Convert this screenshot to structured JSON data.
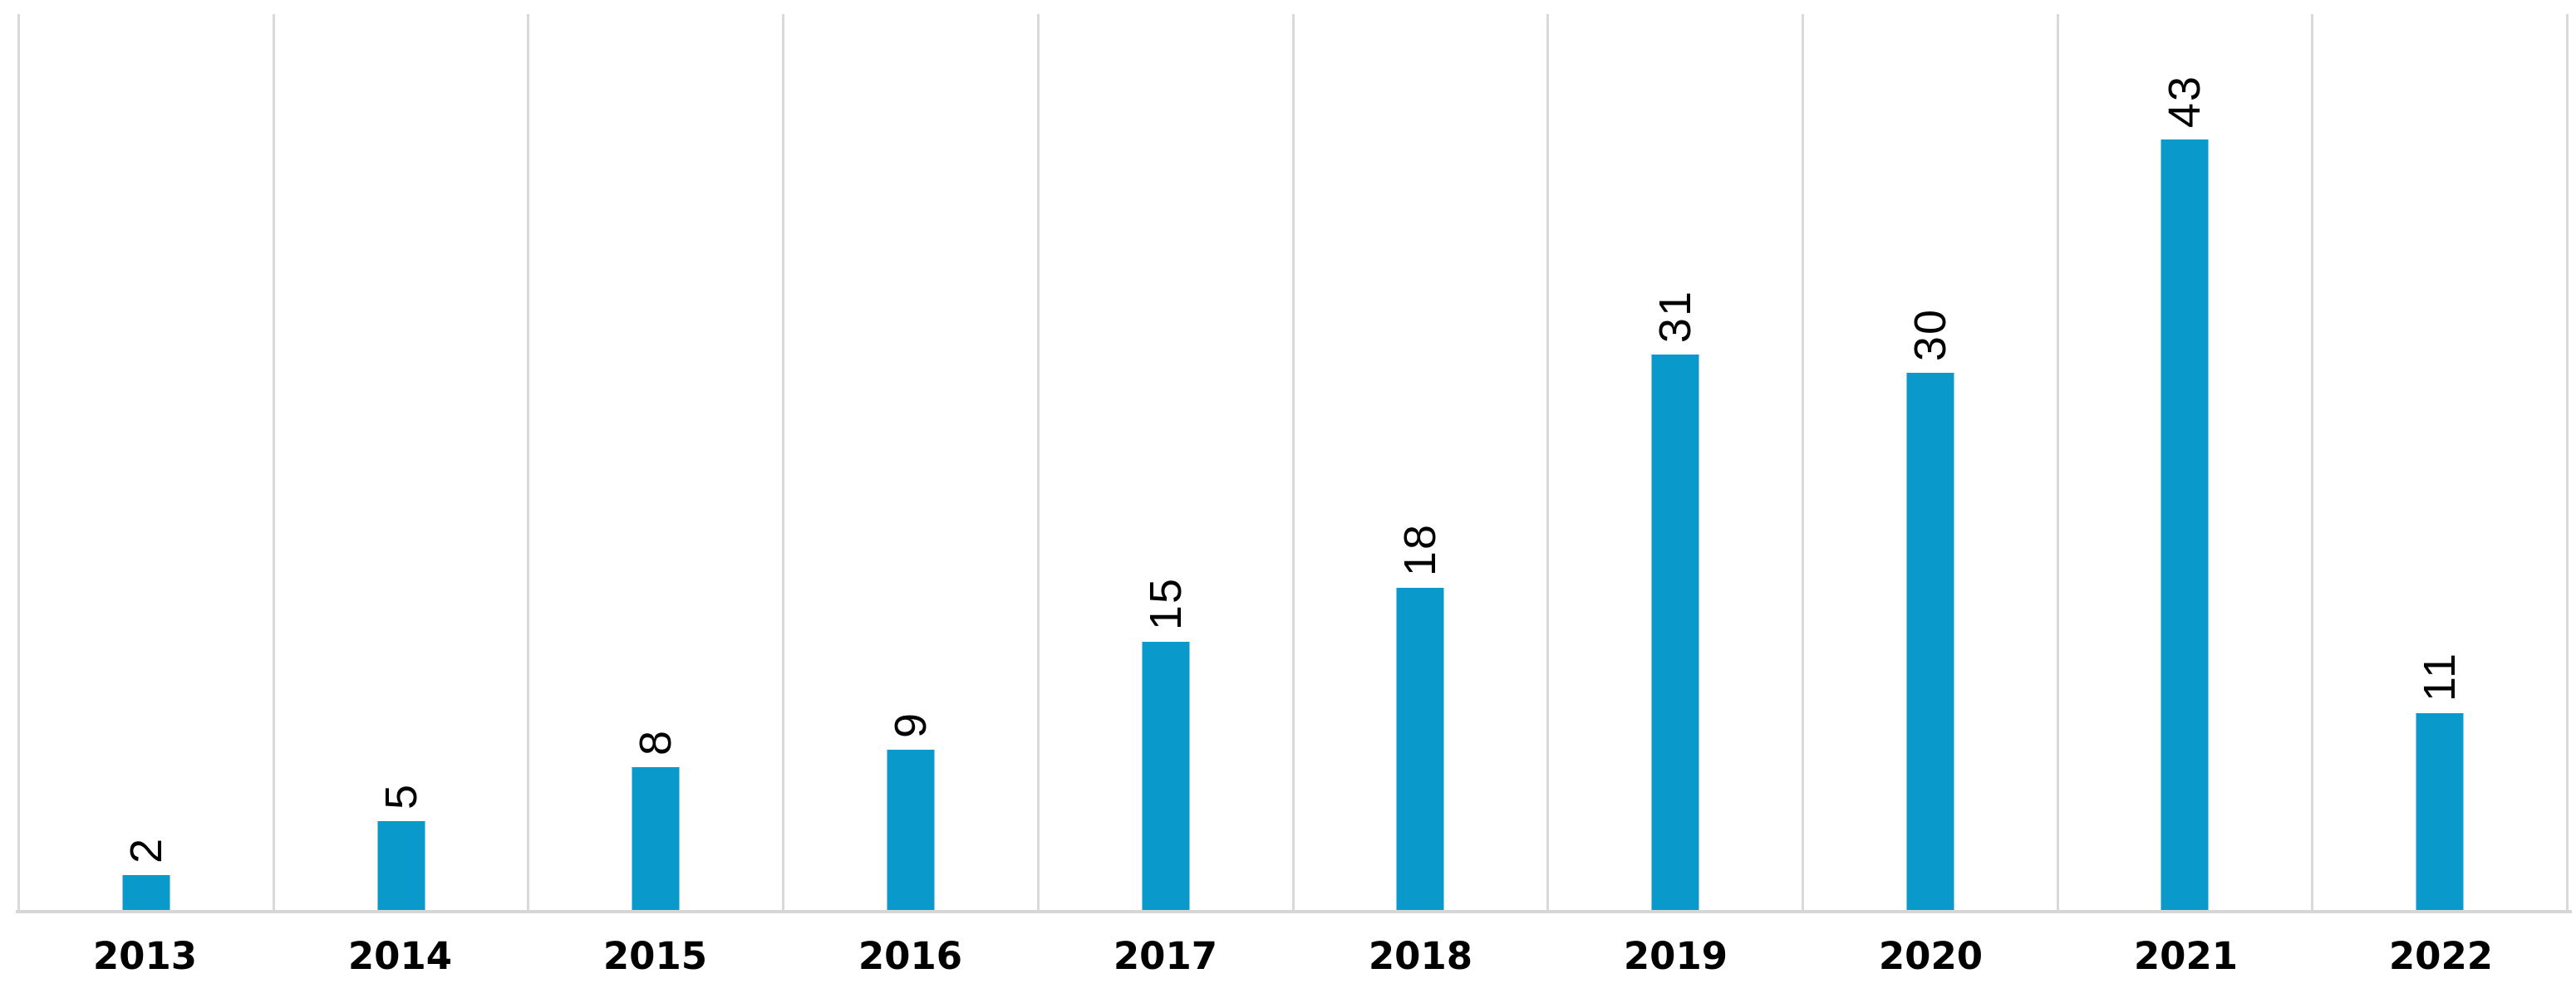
{
  "chart_data": {
    "type": "bar",
    "title": "",
    "categories": [
      "2013",
      "2014",
      "2015",
      "2016",
      "2017",
      "2018",
      "2019",
      "2020",
      "2021",
      "2022"
    ],
    "values": [
      2,
      5,
      8,
      9,
      15,
      18,
      31,
      30,
      43,
      11
    ],
    "data_labels": [
      "2",
      "5",
      "8",
      "9",
      "15",
      "18",
      "31",
      "30",
      "43",
      "11"
    ],
    "data_label_rotation_deg": -90,
    "xlabel": "",
    "ylabel": "",
    "ylim": [
      0,
      50
    ],
    "y_axis_visible": false,
    "grid": "vertical category-boundary gridlines only",
    "legend": "none",
    "bar_color": "#0a99cb",
    "gridline_color": "#d9d9d9",
    "axis_line_color": "#d6d6d6",
    "text_color": "#000000"
  }
}
